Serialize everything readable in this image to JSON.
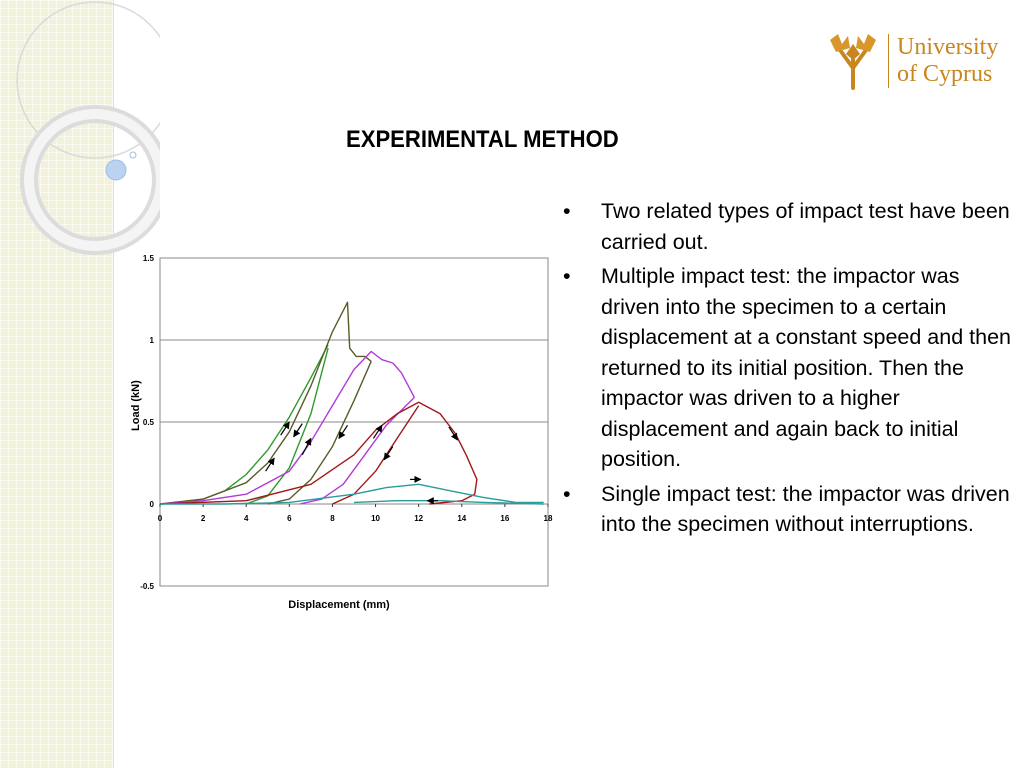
{
  "slide": {
    "title": "EXPERIMENTAL METHOD",
    "logo_text": [
      "University",
      "of Cyprus"
    ],
    "bullets": [
      "Two related types of impact test have been carried out.",
      "Multiple impact test: the impactor was driven into the specimen to a certain displacement at a constant speed and then returned to its initial position. Then the impactor was driven to a higher displacement and again back to initial position.",
      "Single impact test: the impactor was driven into the specimen without interruptions."
    ],
    "bullet_symbol": "•"
  },
  "colors": {
    "side_strip": "#f1f1dc",
    "logo": "#c8861e",
    "green": "#2e9a2e",
    "olive": "#5a5a2a",
    "purple": "#b23ad6",
    "dark_red": "#a01818",
    "teal": "#2a9c9c"
  },
  "chart_data": {
    "type": "line",
    "xlabel": "Displacement (mm)",
    "ylabel": "Load (kN)",
    "xlim": [
      0,
      18
    ],
    "ylim": [
      -0.5,
      1.5
    ],
    "xticks": [
      "0",
      "2",
      "4",
      "6",
      "8",
      "10",
      "12",
      "14",
      "16",
      "18"
    ],
    "yticks": [
      "-0.5",
      "0",
      "0.5",
      "1",
      "1.5"
    ],
    "grid": "horizontal",
    "series": [
      {
        "color": "#2e9a2e",
        "x": [
          0,
          1,
          2,
          3,
          4,
          5,
          6,
          7,
          7.8
        ],
        "y": [
          0,
          0.01,
          0.03,
          0.08,
          0.18,
          0.33,
          0.53,
          0.77,
          0.97
        ]
      },
      {
        "color": "#2e9a2e",
        "x": [
          4,
          5,
          6,
          7,
          7.8
        ],
        "y": [
          0,
          0.05,
          0.22,
          0.55,
          0.95
        ]
      },
      {
        "color": "#5a5a2a",
        "x": [
          0,
          2,
          4,
          5,
          6,
          7,
          8,
          8.7,
          8.8,
          9.1,
          9.5,
          9.8
        ],
        "y": [
          0,
          0.03,
          0.13,
          0.25,
          0.44,
          0.72,
          1.05,
          1.23,
          0.95,
          0.9,
          0.9,
          0.87
        ]
      },
      {
        "color": "#5a5a2a",
        "x": [
          5,
          6,
          7,
          8,
          9,
          9.8
        ],
        "y": [
          0,
          0.03,
          0.15,
          0.35,
          0.63,
          0.87
        ]
      },
      {
        "color": "#b23ad6",
        "x": [
          0,
          2,
          4,
          6,
          7,
          8,
          9,
          9.8,
          10.3,
          10.8,
          11.2,
          11.8
        ],
        "y": [
          0,
          0.02,
          0.06,
          0.2,
          0.38,
          0.6,
          0.82,
          0.93,
          0.88,
          0.86,
          0.8,
          0.65
        ]
      },
      {
        "color": "#b23ad6",
        "x": [
          6.5,
          7.5,
          8.5,
          9.5,
          10.5,
          11.8
        ],
        "y": [
          0,
          0.03,
          0.12,
          0.3,
          0.48,
          0.65
        ]
      },
      {
        "color": "#a01818",
        "x": [
          0,
          4,
          7,
          9,
          10,
          11,
          12,
          13,
          13.7,
          14.2,
          14.7,
          14.6,
          14,
          12.5
        ],
        "y": [
          0,
          0.02,
          0.12,
          0.3,
          0.45,
          0.55,
          0.62,
          0.55,
          0.43,
          0.3,
          0.15,
          0.06,
          0.02,
          0
        ]
      },
      {
        "color": "#a01818",
        "x": [
          8,
          9,
          10,
          11,
          12
        ],
        "y": [
          0,
          0.06,
          0.2,
          0.4,
          0.6
        ]
      },
      {
        "color": "#2a9c9c",
        "x": [
          0,
          3,
          6,
          9,
          10.5,
          12,
          13.5,
          15,
          16.5,
          17.8
        ],
        "y": [
          0,
          0,
          0.01,
          0.06,
          0.1,
          0.12,
          0.08,
          0.04,
          0.01,
          0.01
        ]
      },
      {
        "color": "#2a9c9c",
        "x": [
          9,
          11,
          13,
          15,
          17.8
        ],
        "y": [
          0.01,
          0.02,
          0.02,
          0.01,
          0
        ]
      }
    ],
    "arrows": [
      {
        "x": 5.6,
        "y": 0.42,
        "dx": 0.4,
        "dy": 0.08
      },
      {
        "x": 4.9,
        "y": 0.2,
        "dx": 0.4,
        "dy": 0.08
      },
      {
        "x": 6.6,
        "y": 0.49,
        "dx": -0.4,
        "dy": -0.08
      },
      {
        "x": 6.6,
        "y": 0.3,
        "dx": 0.4,
        "dy": 0.1
      },
      {
        "x": 8.7,
        "y": 0.48,
        "dx": -0.4,
        "dy": -0.08
      },
      {
        "x": 9.9,
        "y": 0.4,
        "dx": 0.4,
        "dy": 0.08
      },
      {
        "x": 10.8,
        "y": 0.35,
        "dx": -0.4,
        "dy": -0.08
      },
      {
        "x": 13.4,
        "y": 0.47,
        "dx": 0.4,
        "dy": -0.08
      },
      {
        "x": 11.6,
        "y": 0.15,
        "dx": 0.5,
        "dy": 0
      },
      {
        "x": 12.9,
        "y": 0.02,
        "dx": -0.5,
        "dy": 0
      }
    ]
  }
}
